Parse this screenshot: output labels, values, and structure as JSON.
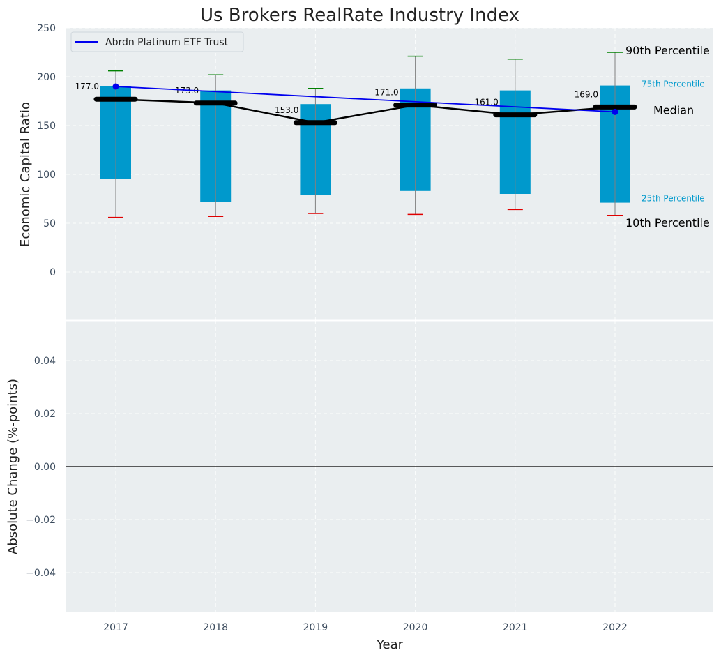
{
  "chart_data": [
    {
      "type": "box",
      "title": "Us Brokers RealRate Industry Index",
      "ylabel": "Economic Capital Ratio",
      "ylim": [
        -50,
        250
      ],
      "yticks": [
        0,
        50,
        100,
        150,
        200,
        250
      ],
      "categories": [
        "2017",
        "2018",
        "2019",
        "2020",
        "2021",
        "2022"
      ],
      "p10": [
        56,
        57,
        60,
        59,
        64,
        58
      ],
      "p25": [
        95,
        72,
        79,
        83,
        80,
        71
      ],
      "median": [
        177,
        173,
        153,
        171,
        161,
        169
      ],
      "median_labels": [
        "177.0",
        "173.0",
        "153.0",
        "171.0",
        "161.0",
        "169.0"
      ],
      "p75": [
        190,
        186,
        172,
        188,
        186,
        191
      ],
      "p90": [
        206,
        202,
        188,
        221,
        218,
        225
      ],
      "series": [
        {
          "name": "Abrdn Platinum ETF Trust",
          "x": [
            "2017",
            "2022"
          ],
          "values": [
            190,
            164
          ],
          "color": "#0000ee"
        }
      ],
      "legend": {
        "position": "top-left",
        "label": "Abrdn Platinum ETF Trust"
      },
      "annotations": {
        "p90": "90th Percentile",
        "p75": "75th Percentile",
        "median": "Median",
        "p25": "25th Percentile",
        "p10": "10th Percentile"
      },
      "colors": {
        "box": "#0099cc",
        "p90_cap": "#008000",
        "p10_cap": "#e00000",
        "median": "#000000",
        "background": "#eaeef0"
      },
      "grid": true
    },
    {
      "type": "line",
      "ylabel": "Absolute Change (%-points)",
      "xlabel": "Year",
      "ylim": [
        -0.055,
        0.055
      ],
      "yticks": [
        "−0.04",
        "−0.02",
        "0.00",
        "0.02",
        "0.04"
      ],
      "ytick_values": [
        -0.04,
        -0.02,
        0.0,
        0.02,
        0.04
      ],
      "categories": [
        "2017",
        "2018",
        "2019",
        "2020",
        "2021",
        "2022"
      ],
      "reference_line": 0,
      "grid": true
    }
  ]
}
